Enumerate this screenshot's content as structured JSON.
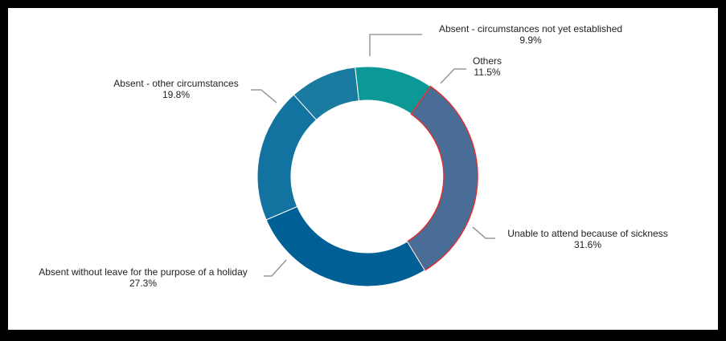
{
  "chart_data": {
    "type": "pie",
    "donut": true,
    "legend": "none",
    "slices": [
      {
        "label": "Absent - circumstances not yet established",
        "value_label": "9.9%",
        "value": 9.9,
        "color": "#1b7aa0"
      },
      {
        "label": "Others",
        "value_label": "11.5%",
        "value": 11.5,
        "color": "#0d9898"
      },
      {
        "label": "Unable to attend because of sickness",
        "value_label": "31.6%",
        "value": 31.6,
        "color": "#4a6d98"
      },
      {
        "label": "Absent without leave for the purpose of a holiday",
        "value_label": "27.3%",
        "value": 27.3,
        "color": "#005f94"
      },
      {
        "label": "Absent - other circumstances",
        "value_label": "19.8%",
        "value": 19.8,
        "color": "#1273a0"
      }
    ],
    "highlighted_slice": "Unable to attend because of sickness",
    "highlight_color": "#e03030"
  }
}
